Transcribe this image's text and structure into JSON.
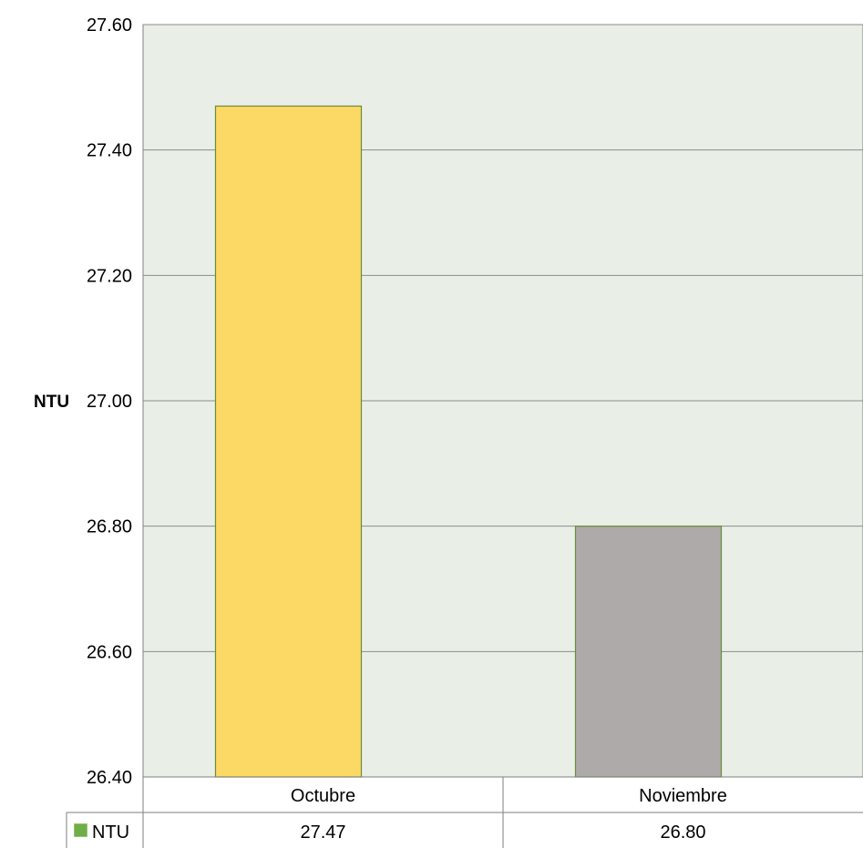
{
  "chart_data": {
    "type": "bar",
    "categories": [
      "Octubre",
      "Noviembre"
    ],
    "series": [
      {
        "name": "NTU",
        "values": [
          27.47,
          26.8
        ]
      }
    ],
    "value_labels": [
      "27.47",
      "26.80"
    ],
    "bar_colors": [
      "#fcd965",
      "#aeaaaa"
    ],
    "bar_stroke": "#6b8c3a",
    "legend_color": "#70ad47",
    "plot_background": "#e9efe6",
    "ylabel": "NTU",
    "ylim": [
      26.4,
      27.6
    ],
    "yticks": [
      "26.40",
      "26.60",
      "26.80",
      "27.00",
      "27.20",
      "27.40",
      "27.60"
    ],
    "grid": true,
    "legend": "data-table"
  }
}
